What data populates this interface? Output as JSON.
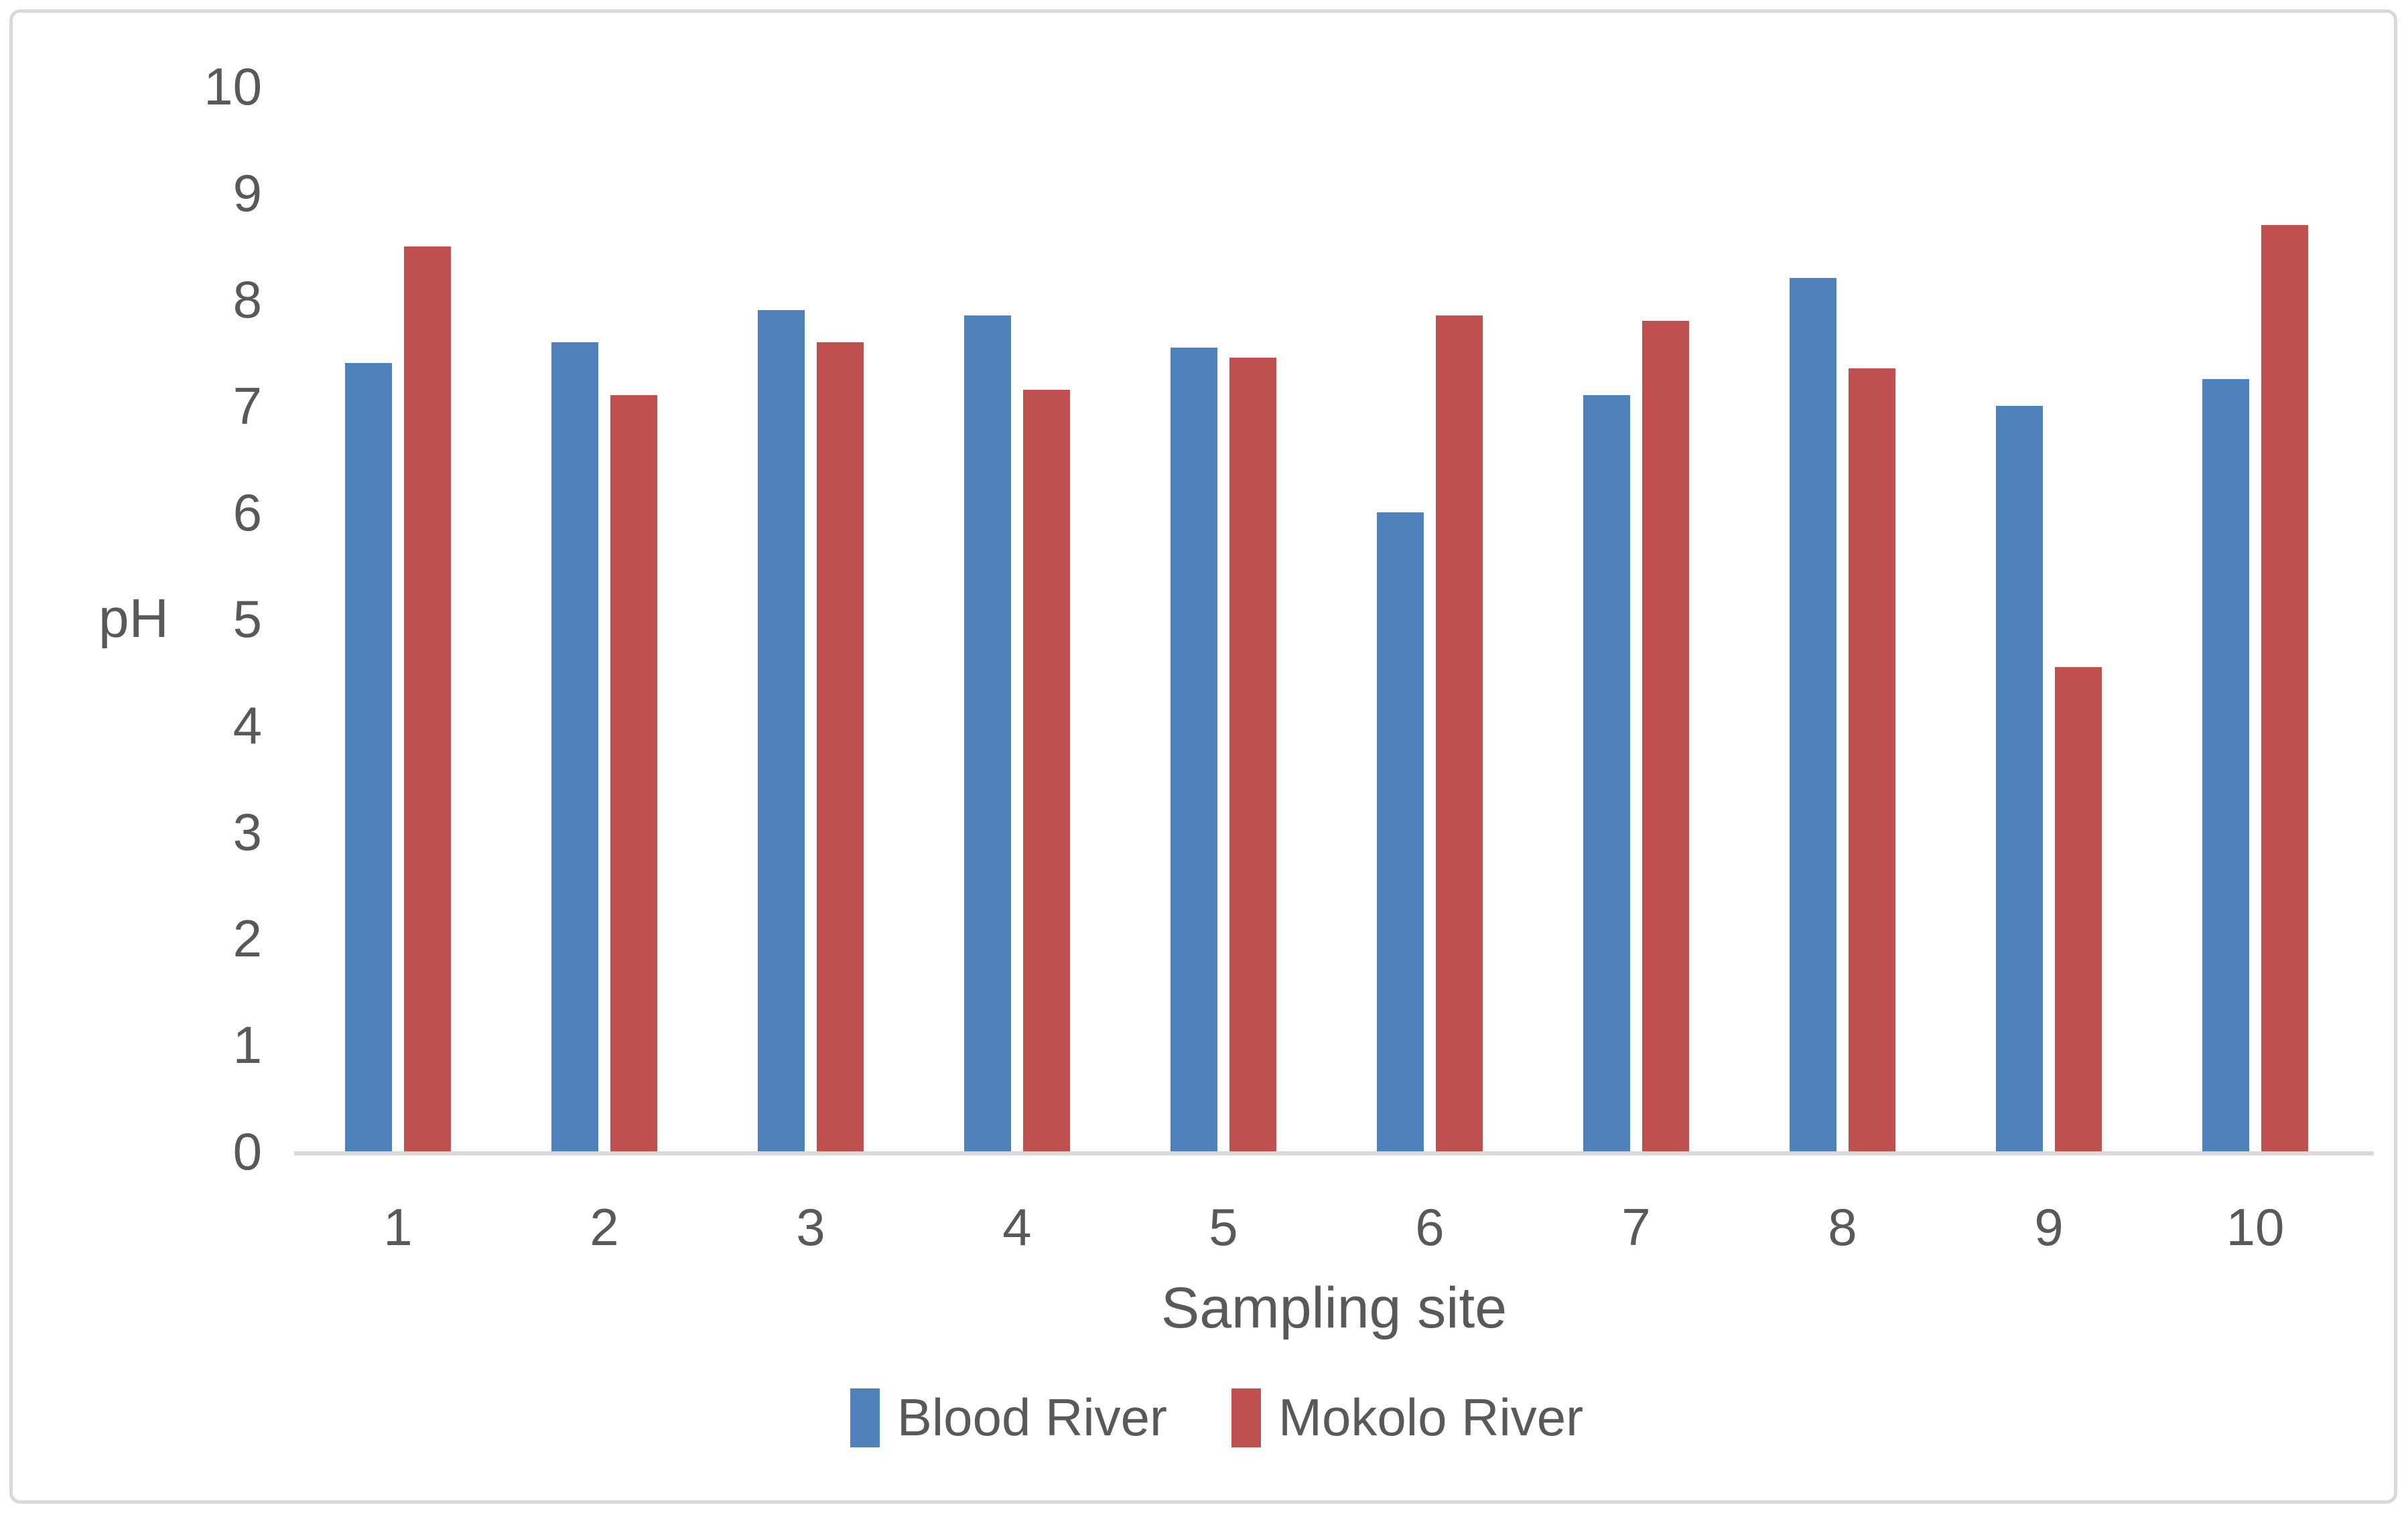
{
  "chart_data": {
    "type": "bar",
    "title": "",
    "xlabel": "Sampling site",
    "ylabel": "pH",
    "ylim": [
      0,
      10
    ],
    "ytick_labels": [
      "0",
      "1",
      "2",
      "3",
      "4",
      "5",
      "6",
      "7",
      "8",
      "9",
      "10"
    ],
    "grid": false,
    "legend_position": "bottom",
    "categories": [
      "1",
      "2",
      "3",
      "4",
      "5",
      "6",
      "7",
      "8",
      "9",
      "10"
    ],
    "series": [
      {
        "name": "Blood River",
        "color": "#4f81bd",
        "values": [
          7.4,
          7.6,
          7.9,
          7.85,
          7.55,
          6.0,
          7.1,
          8.2,
          7.0,
          7.25
        ]
      },
      {
        "name": "Mokolo River",
        "color": "#c0504d",
        "values": [
          8.5,
          7.1,
          7.6,
          7.15,
          7.45,
          7.85,
          7.8,
          7.35,
          4.55,
          8.7
        ]
      }
    ]
  },
  "colors": {
    "axis_line": "#d9d9d9",
    "frame_border": "#d9d9d9",
    "text": "#595959"
  }
}
